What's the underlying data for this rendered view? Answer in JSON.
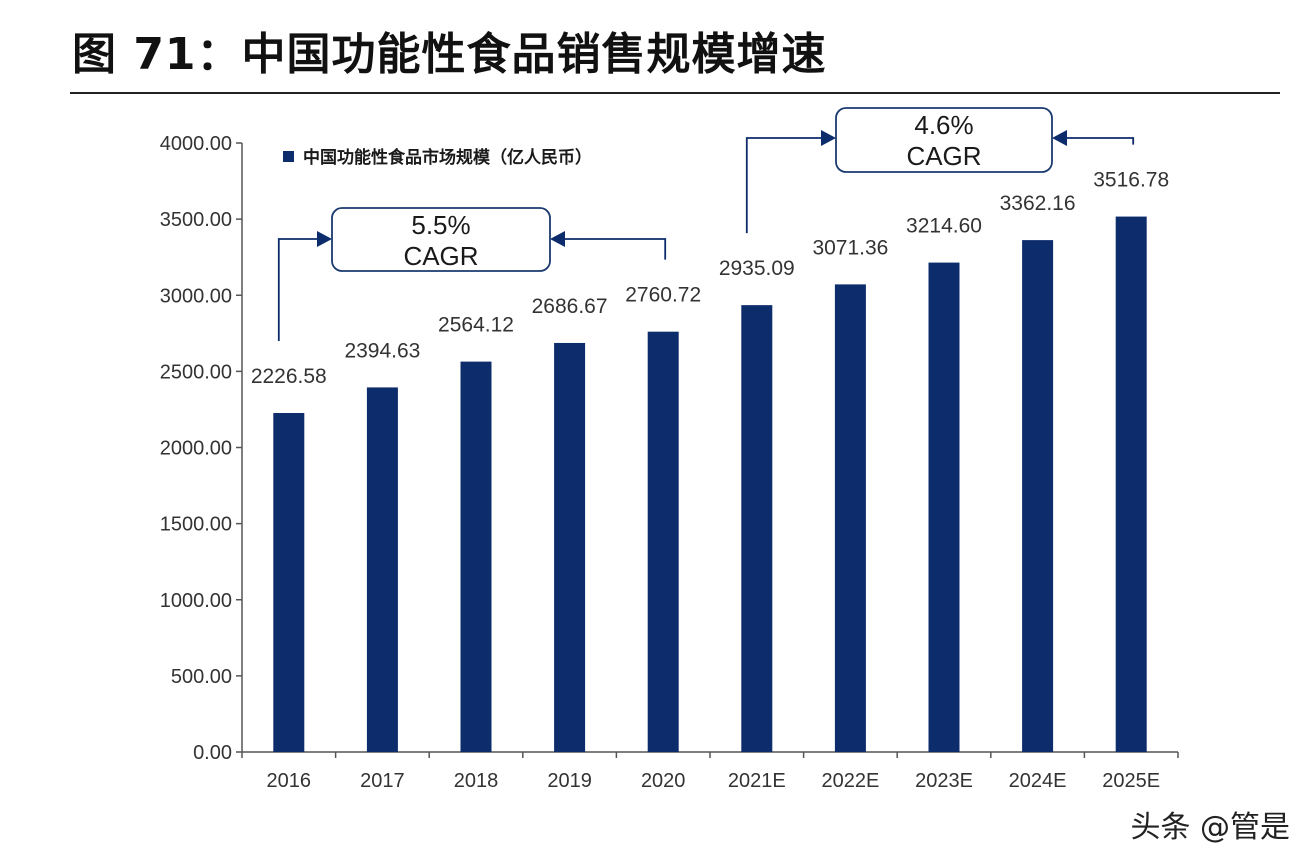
{
  "figure": {
    "title": "图 71：中国功能性食品销售规模增速",
    "watermark": "头条 @管是"
  },
  "colors": {
    "bar": "#0d2c6b",
    "axis": "#555555",
    "text": "#333333",
    "callout_border": "#1a3a6e"
  },
  "chart_data": {
    "type": "bar",
    "categories": [
      "2016",
      "2017",
      "2018",
      "2019",
      "2020",
      "2021E",
      "2022E",
      "2023E",
      "2024E",
      "2025E"
    ],
    "series": [
      {
        "name": "中国功能性食品市场规模（亿人民币）",
        "values": [
          2226.58,
          2394.63,
          2564.12,
          2686.67,
          2760.72,
          2935.09,
          3071.36,
          3214.6,
          3362.16,
          3516.78
        ]
      }
    ],
    "data_labels": [
      "2226.58",
      "2394.63",
      "2564.12",
      "2686.67",
      "2760.72",
      "2935.09",
      "3071.36",
      "3214.60",
      "3362.16",
      "3516.78"
    ],
    "yticks": [
      "0.00",
      "500.00",
      "1000.00",
      "1500.00",
      "2000.00",
      "2500.00",
      "3000.00",
      "3500.00",
      "4000.00"
    ],
    "ylim": [
      0,
      4000
    ],
    "legend_position": "top-left",
    "grid": false,
    "annotations": [
      {
        "rate": "5.5%",
        "label": "CAGR",
        "from": "2016",
        "to": "2020"
      },
      {
        "rate": "4.6%",
        "label": "CAGR",
        "from": "2021E",
        "to": "2025E"
      }
    ]
  }
}
